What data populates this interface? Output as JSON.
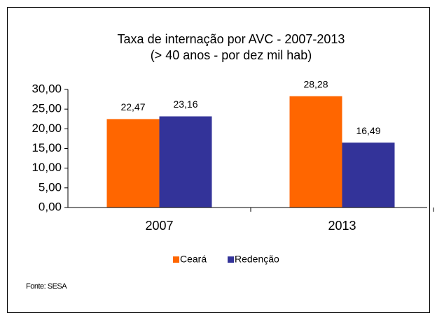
{
  "chart_data": {
    "type": "bar",
    "title": "Taxa de internação por AVC - 2007-2013",
    "subtitle": "(> 40 anos - por dez mil hab)",
    "categories": [
      "2007",
      "2013"
    ],
    "series": [
      {
        "name": "Ceará",
        "color": "#ff6600",
        "values": [
          22.47,
          28.28
        ],
        "value_labels": [
          "22,47",
          "28,28"
        ]
      },
      {
        "name": "Redenção",
        "color": "#333399",
        "values": [
          23.16,
          16.49
        ],
        "value_labels": [
          "23,16",
          "16,49"
        ]
      }
    ],
    "ylim": [
      0,
      30
    ],
    "yticks": [
      {
        "value": 0,
        "label": "0,00"
      },
      {
        "value": 5,
        "label": "5,00"
      },
      {
        "value": 10,
        "label": "10,00"
      },
      {
        "value": 15,
        "label": "15,00"
      },
      {
        "value": 20,
        "label": "20,00"
      },
      {
        "value": 25,
        "label": "25,00"
      },
      {
        "value": 30,
        "label": "30,00"
      }
    ],
    "legend": "bottom",
    "source": "Fonte: SESA"
  }
}
